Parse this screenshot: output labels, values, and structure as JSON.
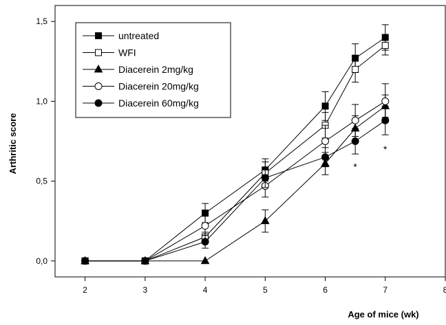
{
  "chart_data": {
    "type": "line",
    "title": "",
    "xlabel": "Age of mice (wk)",
    "ylabel": "Arthritic score",
    "xlim": [
      1.5,
      8
    ],
    "ylim": [
      -0.1,
      1.6
    ],
    "x_ticks": [
      2,
      3,
      4,
      5,
      6,
      7,
      8
    ],
    "x_tick_labels": [
      "2",
      "3",
      "4",
      "5",
      "6",
      "7",
      "8"
    ],
    "y_ticks": [
      0,
      0.5,
      1.0,
      1.5
    ],
    "y_tick_labels": [
      "0,0",
      "0,5",
      "1,0",
      "1,5"
    ],
    "grid": false,
    "legend_position": "top-left",
    "series": [
      {
        "name": "untreated",
        "marker": "square-filled",
        "x": [
          2,
          3,
          4,
          5,
          6,
          6.5,
          7
        ],
        "y": [
          0,
          0,
          0.3,
          0.57,
          0.97,
          1.27,
          1.4
        ],
        "err": [
          0,
          0,
          0.06,
          0.07,
          0.09,
          0.09,
          0.08
        ]
      },
      {
        "name": "WFI",
        "marker": "square-open",
        "x": [
          2,
          3,
          4,
          5,
          6,
          6.5,
          7
        ],
        "y": [
          0,
          0,
          0.15,
          0.55,
          0.85,
          1.2,
          1.35
        ],
        "err": [
          0,
          0,
          0.03,
          0.07,
          0.08,
          0.08,
          0.06
        ]
      },
      {
        "name": "Diacerein 2mg/kg",
        "marker": "triangle-filled",
        "x": [
          2,
          3,
          4,
          5,
          6,
          6.5,
          7
        ],
        "y": [
          0,
          0,
          0,
          0.25,
          0.61,
          0.83,
          0.97
        ],
        "err": [
          0,
          0,
          0,
          0.07,
          0.07,
          0.08,
          0.07
        ]
      },
      {
        "name": "Diacerein 20mg/kg",
        "marker": "circle-open",
        "x": [
          2,
          3,
          4,
          5,
          6,
          6.5,
          7
        ],
        "y": [
          0,
          0,
          0.22,
          0.47,
          0.75,
          0.88,
          1.0
        ],
        "err": [
          0,
          0,
          0.06,
          0.07,
          0.1,
          0.1,
          0.11
        ]
      },
      {
        "name": "Diacerein 60mg/kg",
        "marker": "circle-filled",
        "x": [
          2,
          3,
          4,
          5,
          6,
          6.5,
          7
        ],
        "y": [
          0,
          0,
          0.12,
          0.52,
          0.65,
          0.75,
          0.88
        ],
        "err": [
          0,
          0,
          0.04,
          0.06,
          0.06,
          0.08,
          0.09
        ]
      }
    ],
    "annotations": [
      {
        "text": "*",
        "x": 6.5,
        "y": 0.57
      },
      {
        "text": "*",
        "x": 7,
        "y": 0.68
      }
    ]
  }
}
